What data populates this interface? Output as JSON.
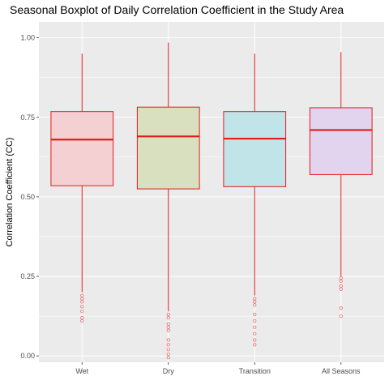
{
  "chart_data": {
    "type": "boxplot",
    "title": "Seasonal Boxplot of Daily Correlation Coefficient in the Study Area",
    "xlabel": "",
    "ylabel": "Correlation Coefficient (CC)",
    "ylim": [
      -0.02,
      1.05
    ],
    "y_ticks": [
      "0.00",
      "0.25",
      "0.50",
      "0.75",
      "1.00"
    ],
    "y_tick_values": [
      0,
      0.25,
      0.5,
      0.75,
      1.0
    ],
    "grid": true,
    "panel_background": "#ebebeb",
    "grid_color": "#ffffff",
    "line_color": "#e41a1c",
    "categories": [
      "Wet",
      "Dry",
      "Transition",
      "All Seasons"
    ],
    "series": [
      {
        "category": "Wet",
        "fill": "#f4d0d3",
        "whisker_low": 0.2,
        "q1": 0.535,
        "median": 0.68,
        "q3": 0.768,
        "whisker_high": 0.95,
        "outliers": [
          0.19,
          0.18,
          0.17,
          0.155,
          0.14,
          0.12,
          0.11
        ]
      },
      {
        "category": "Dry",
        "fill": "#d9e0bf",
        "whisker_low": 0.14,
        "q1": 0.525,
        "median": 0.69,
        "q3": 0.782,
        "whisker_high": 0.985,
        "outliers": [
          0.13,
          0.12,
          0.1,
          0.09,
          0.08,
          0.05,
          0.035,
          0.02,
          0.005,
          -0.005
        ]
      },
      {
        "category": "Transition",
        "fill": "#c0e4e7",
        "whisker_low": 0.19,
        "q1": 0.532,
        "median": 0.683,
        "q3": 0.768,
        "whisker_high": 0.95,
        "outliers": [
          0.18,
          0.17,
          0.16,
          0.13,
          0.11,
          0.09,
          0.07,
          0.05,
          0.035
        ]
      },
      {
        "category": "All Seasons",
        "fill": "#e2d4ef",
        "whisker_low": 0.25,
        "q1": 0.57,
        "median": 0.71,
        "q3": 0.78,
        "whisker_high": 0.955,
        "outliers": [
          0.245,
          0.235,
          0.22,
          0.21,
          0.15,
          0.125
        ]
      }
    ]
  }
}
